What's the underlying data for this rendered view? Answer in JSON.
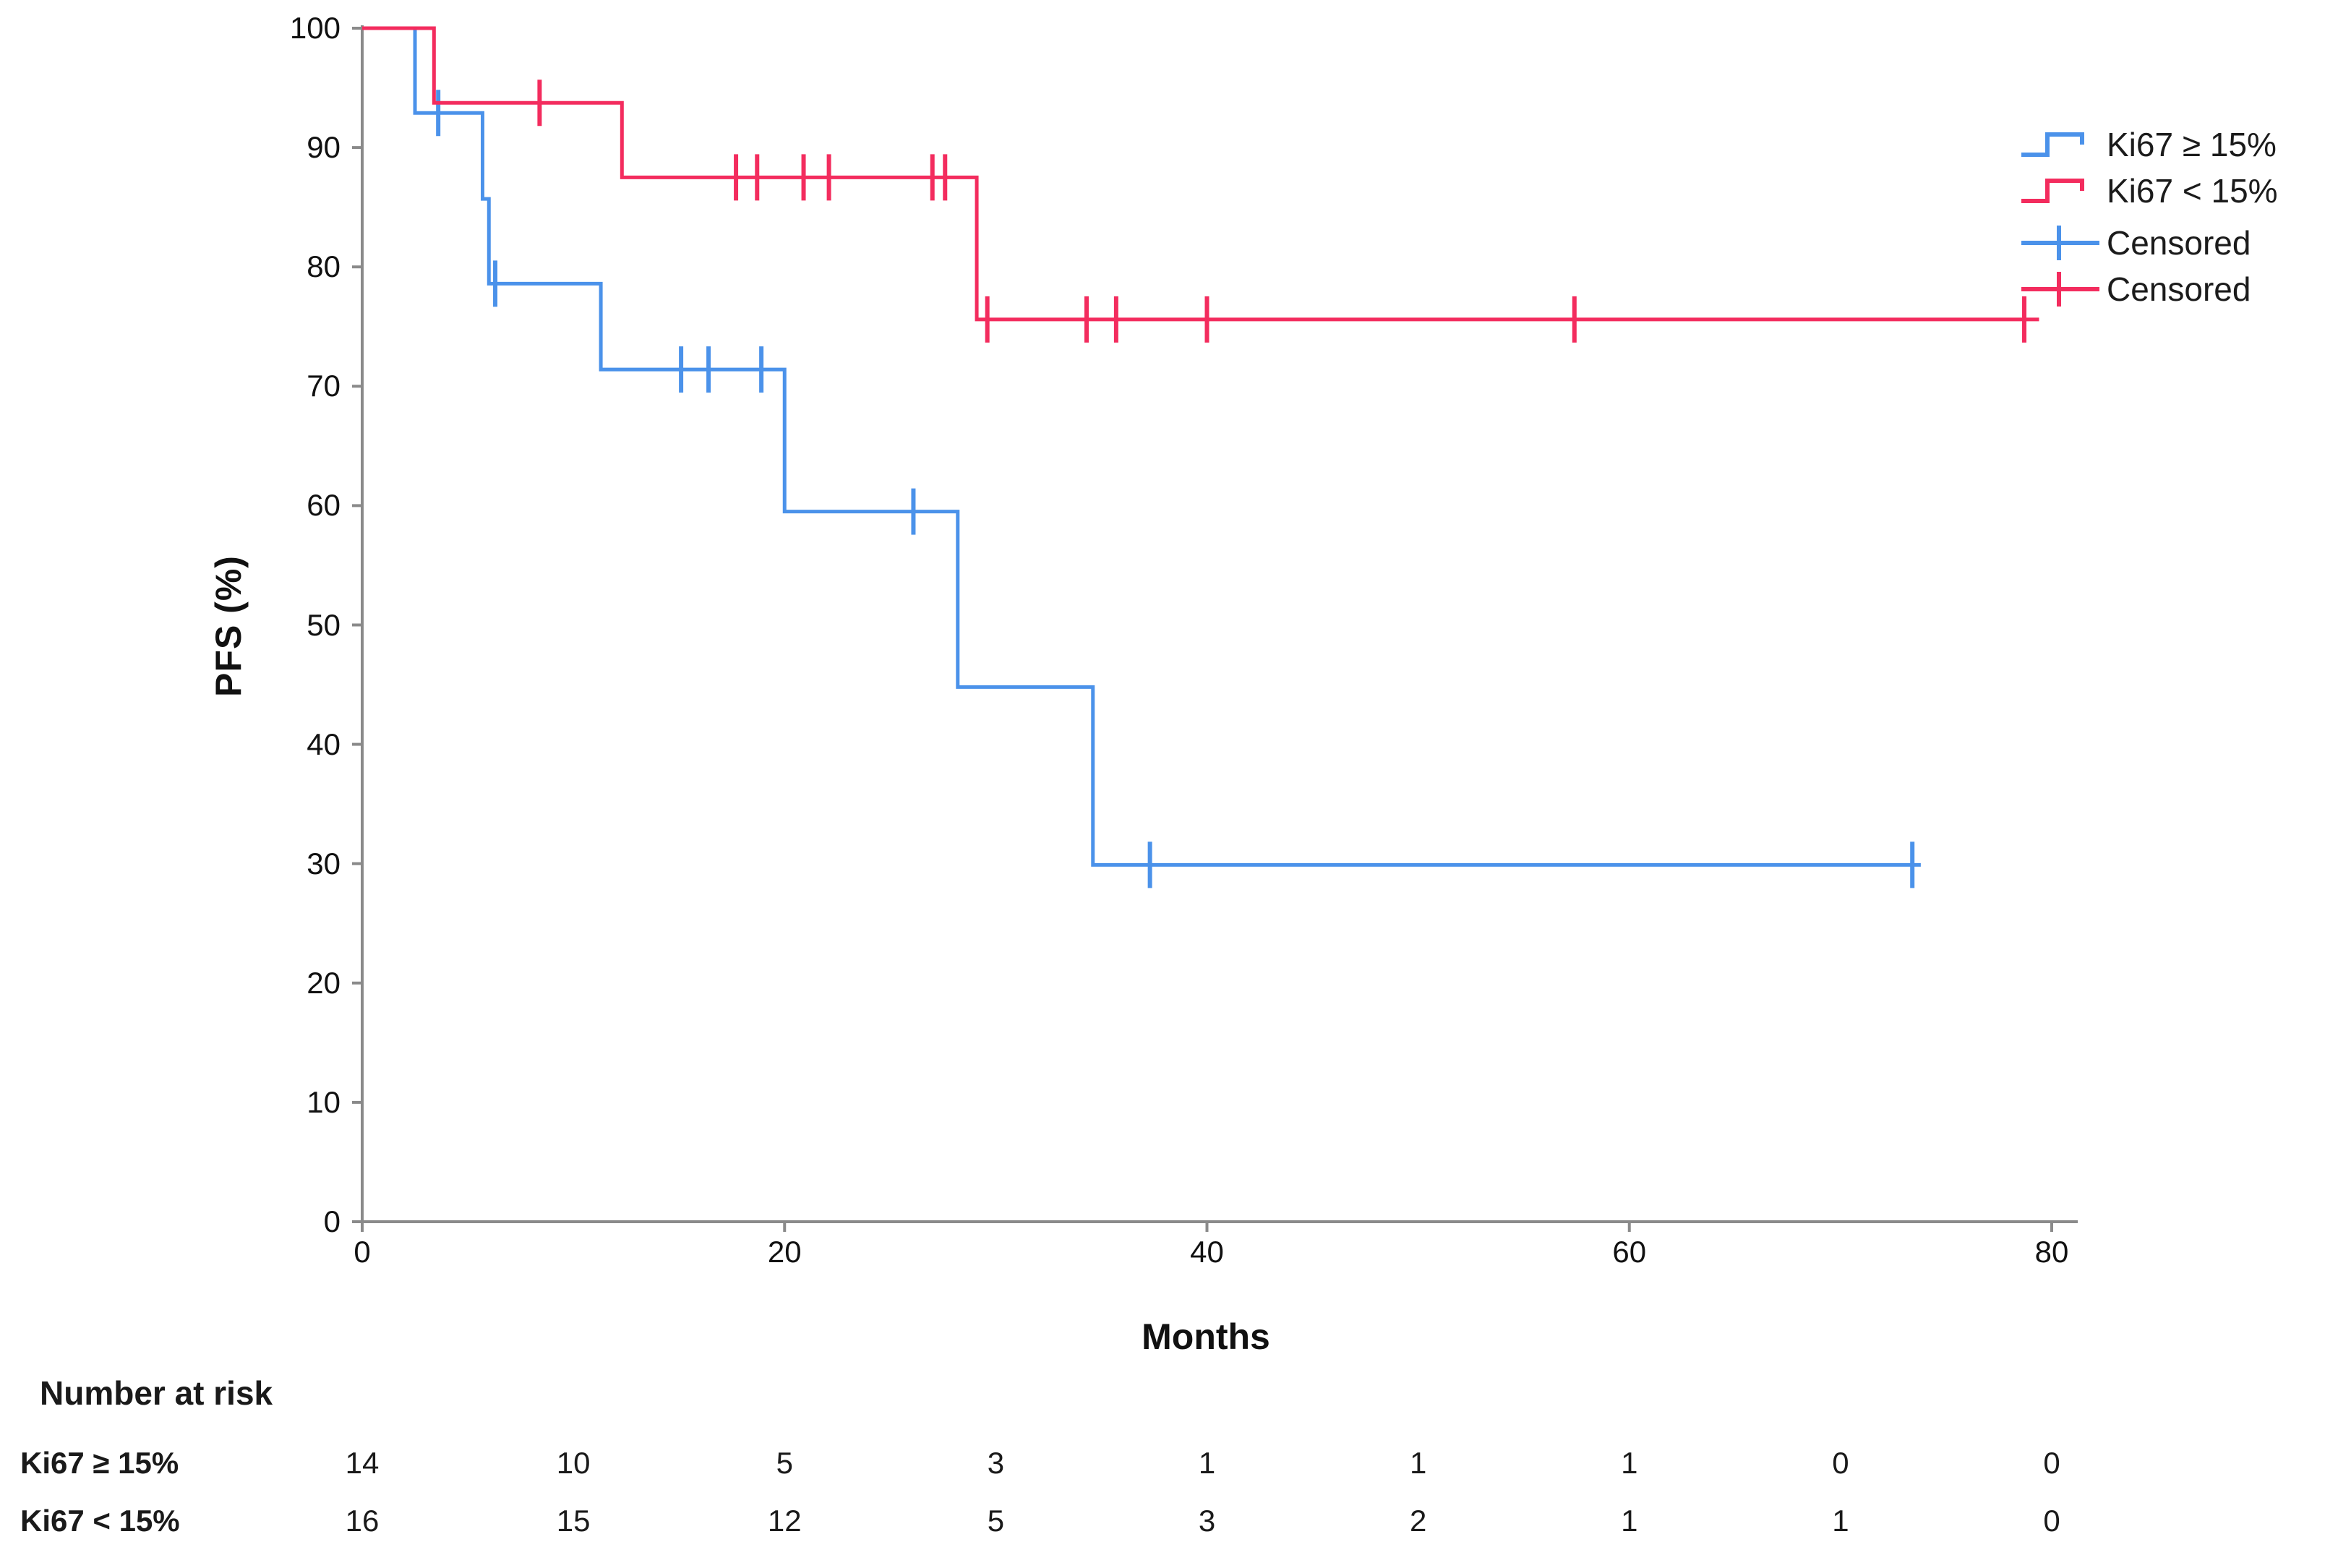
{
  "figure": {
    "ylabel": "PFS (%)",
    "xlabel": "Months",
    "axis_color": "#8A8A8A",
    "text_color": "#111111",
    "legend": [
      {
        "label": "Ki67 ≥ 15%",
        "symbol": "step-line-icon",
        "color": "#4B92EA"
      },
      {
        "label": "Ki67 < 15%",
        "symbol": "step-line-icon",
        "color": "#F32C5E"
      },
      {
        "label": "Censored",
        "symbol": "plus-icon",
        "color": "#4B92EA"
      },
      {
        "label": "Censored",
        "symbol": "plus-icon",
        "color": "#F32C5E"
      }
    ]
  },
  "chart_data": {
    "type": "line",
    "subtype": "kaplan_meier_step",
    "title": "",
    "xlabel": "Months",
    "ylabel": "PFS (%)",
    "xlim": [
      0,
      80
    ],
    "ylim": [
      0,
      100
    ],
    "x_ticks": [
      0,
      20,
      40,
      60,
      80
    ],
    "y_ticks": [
      0,
      10,
      20,
      30,
      40,
      50,
      60,
      70,
      80,
      90,
      100
    ],
    "grid": false,
    "legend_position": "upper-right",
    "series": [
      {
        "name": "Ki67 ≥ 15%",
        "color": "#4B92EA",
        "steps": [
          [
            0,
            100
          ],
          [
            2.5,
            92.9
          ],
          [
            5.7,
            85.7
          ],
          [
            6.0,
            78.6
          ],
          [
            11.3,
            71.4
          ],
          [
            20.0,
            59.5
          ],
          [
            28.2,
            44.8
          ],
          [
            34.6,
            29.9
          ],
          [
            73.8,
            29.9
          ]
        ],
        "censored": [
          [
            3.6,
            92.9
          ],
          [
            6.3,
            78.6
          ],
          [
            15.1,
            71.4
          ],
          [
            16.4,
            71.4
          ],
          [
            18.9,
            71.4
          ],
          [
            26.1,
            59.5
          ],
          [
            37.3,
            29.9
          ],
          [
            73.4,
            29.9
          ]
        ]
      },
      {
        "name": "Ki67 < 15%",
        "color": "#F32C5E",
        "steps": [
          [
            0,
            100
          ],
          [
            3.4,
            93.75
          ],
          [
            12.3,
            87.5
          ],
          [
            29.1,
            75.6
          ],
          [
            79.4,
            75.6
          ]
        ],
        "censored": [
          [
            8.4,
            93.75
          ],
          [
            17.7,
            87.5
          ],
          [
            18.7,
            87.5
          ],
          [
            20.9,
            87.5
          ],
          [
            22.1,
            87.5
          ],
          [
            27.0,
            87.5
          ],
          [
            27.6,
            87.5
          ],
          [
            29.6,
            75.6
          ],
          [
            34.3,
            75.6
          ],
          [
            35.7,
            75.6
          ],
          [
            40.0,
            75.6
          ],
          [
            57.4,
            75.6
          ],
          [
            78.7,
            75.6
          ]
        ]
      }
    ]
  },
  "risk_table": {
    "title": "Number at risk",
    "time_points": [
      0,
      10,
      20,
      30,
      40,
      50,
      60,
      70,
      80
    ],
    "rows": [
      {
        "label": "Ki67 ≥ 15%",
        "values": [
          14,
          10,
          5,
          3,
          1,
          1,
          1,
          0,
          0
        ]
      },
      {
        "label": "Ki67 < 15%",
        "values": [
          16,
          15,
          12,
          5,
          3,
          2,
          1,
          1,
          0
        ]
      }
    ]
  }
}
